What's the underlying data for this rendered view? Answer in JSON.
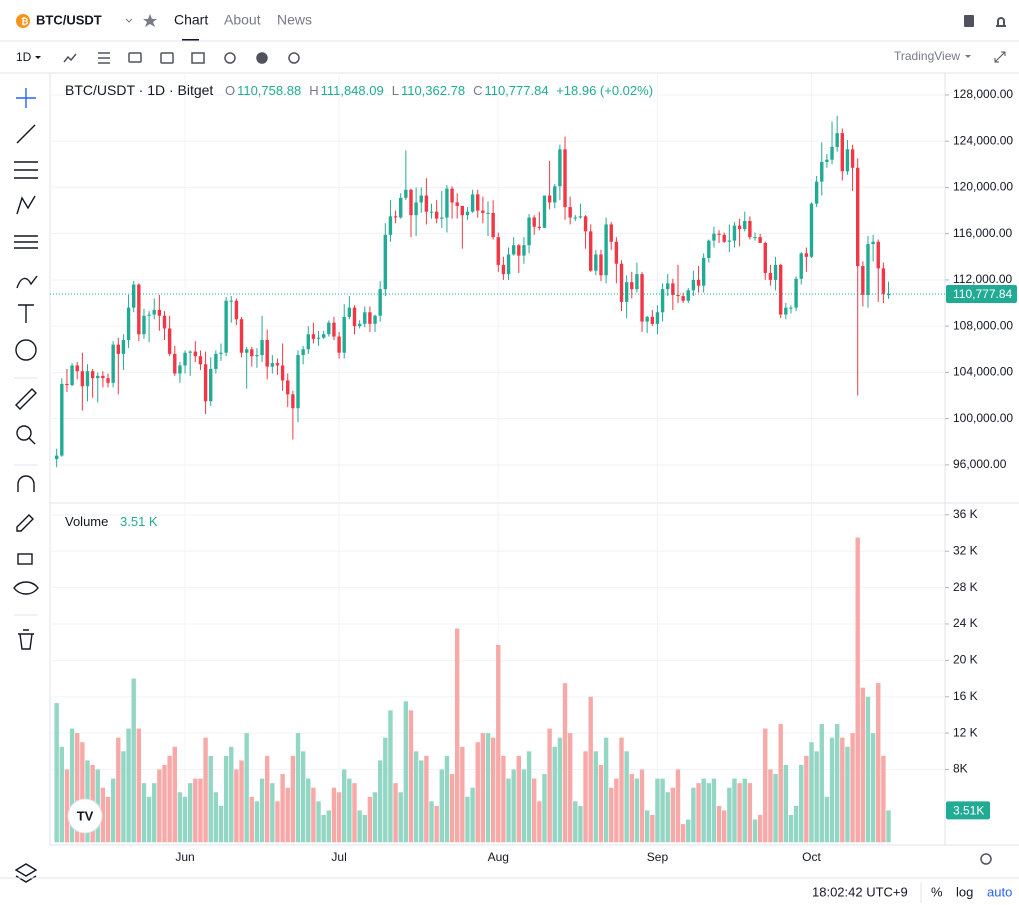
{
  "ui": {
    "symbol": "BTC/USDT",
    "tabs": [
      "Chart",
      "About",
      "News"
    ],
    "interval": "1D",
    "brand": "TradingView",
    "clock": "18:02:42 UTC+9",
    "percent": "%",
    "log": "log",
    "auto": "auto"
  },
  "legend": {
    "symbol": "BTC/USDT · 1D · Bitget",
    "fields": [
      {
        "label": "O",
        "value": "110,758.88"
      },
      {
        "label": "H",
        "value": "111,848.09"
      },
      {
        "label": "L",
        "value": "110,362.78"
      },
      {
        "label": "C",
        "value": "110,777.84"
      }
    ],
    "change": "+18.96 (+0.02%)",
    "volume_name": "Volume",
    "volume_value": "3.51 K"
  },
  "chart_data": {
    "type": "candlestick",
    "up_color": "#22ab94",
    "down_color": "#f23645",
    "volume_up_color": "#93d6c4",
    "volume_down_color": "#f7a9a7",
    "xlim": [
      -1.3,
      173
    ],
    "xticks": [
      {
        "value": 25,
        "label": "Jun"
      },
      {
        "value": 55,
        "label": "Jul"
      },
      {
        "value": 86,
        "label": "Aug"
      },
      {
        "value": 117,
        "label": "Sep"
      },
      {
        "value": 147,
        "label": "Oct"
      }
    ],
    "ylim": [
      92700,
      129900
    ],
    "yticks": [
      {
        "value": 96000,
        "label": "96,000.00"
      },
      {
        "value": 100000,
        "label": "100,000.00"
      },
      {
        "value": 104000,
        "label": "104,000.00"
      },
      {
        "value": 108000,
        "label": "108,000.00"
      },
      {
        "value": 112000,
        "label": "112,000.00"
      },
      {
        "value": 116000,
        "label": "116,000.00"
      },
      {
        "value": 120000,
        "label": "120,000.00"
      },
      {
        "value": 124000,
        "label": "124,000.00"
      },
      {
        "value": 128000,
        "label": "128,000.00"
      }
    ],
    "volume_ylim": [
      -0.3,
      37.3
    ],
    "volume_yticks": [
      {
        "value": 8,
        "label": "8K"
      },
      {
        "value": 12,
        "label": "12 K"
      },
      {
        "value": 16,
        "label": "16 K"
      },
      {
        "value": 20,
        "label": "20 K"
      },
      {
        "value": 24,
        "label": "24 K"
      },
      {
        "value": 28,
        "label": "28 K"
      },
      {
        "value": 32,
        "label": "32 K"
      },
      {
        "value": 36,
        "label": "36 K"
      }
    ],
    "grid": true,
    "last_price": 110777.84,
    "last_price_label": "110,777.84",
    "last_volume_label": "3.51K",
    "candles": [
      [
        96500,
        97400,
        95800,
        96800
      ],
      [
        96800,
        103500,
        96700,
        103000
      ],
      [
        103000,
        104300,
        102300,
        102900
      ],
      [
        102900,
        104800,
        102800,
        104600
      ],
      [
        104600,
        104900,
        103400,
        104100
      ],
      [
        104100,
        105700,
        100700,
        102800
      ],
      [
        102800,
        104700,
        101500,
        104100
      ],
      [
        104100,
        104300,
        101800,
        103500
      ],
      [
        103500,
        104000,
        101400,
        103700
      ],
      [
        103700,
        104100,
        102700,
        103500
      ],
      [
        103500,
        103900,
        102700,
        103100
      ],
      [
        103100,
        106700,
        102700,
        106400
      ],
      [
        106400,
        107000,
        102100,
        105600
      ],
      [
        105600,
        107300,
        104200,
        106800
      ],
      [
        106800,
        110700,
        106100,
        109600
      ],
      [
        109600,
        111900,
        109200,
        111600
      ],
      [
        111600,
        111700,
        106700,
        107300
      ],
      [
        107300,
        109500,
        106900,
        108900
      ],
      [
        108900,
        109300,
        106600,
        109000
      ],
      [
        109000,
        110400,
        108600,
        109400
      ],
      [
        109400,
        110700,
        107600,
        108900
      ],
      [
        108900,
        109300,
        106800,
        107800
      ],
      [
        107800,
        108900,
        105400,
        105600
      ],
      [
        105600,
        106300,
        103700,
        103900
      ],
      [
        103900,
        104900,
        103100,
        104600
      ],
      [
        104600,
        105900,
        103900,
        105700
      ],
      [
        105700,
        105900,
        103700,
        105800
      ],
      [
        105800,
        106700,
        104900,
        105400
      ],
      [
        105400,
        105900,
        104200,
        104700
      ],
      [
        104700,
        105800,
        100400,
        101500
      ],
      [
        101500,
        105300,
        101100,
        104300
      ],
      [
        104300,
        105900,
        103900,
        105600
      ],
      [
        105600,
        106500,
        105000,
        105700
      ],
      [
        105700,
        110500,
        105400,
        110200
      ],
      [
        110200,
        110600,
        108300,
        110200
      ],
      [
        110200,
        110400,
        108100,
        108600
      ],
      [
        108600,
        108800,
        105300,
        105700
      ],
      [
        105700,
        106200,
        102600,
        106000
      ],
      [
        106000,
        106200,
        104500,
        105400
      ],
      [
        105400,
        106100,
        104400,
        105500
      ],
      [
        105500,
        108900,
        104900,
        106800
      ],
      [
        106800,
        107700,
        103400,
        104500
      ],
      [
        104500,
        105500,
        103900,
        104800
      ],
      [
        104800,
        105200,
        103800,
        104600
      ],
      [
        104600,
        106500,
        102400,
        103300
      ],
      [
        103300,
        103900,
        101000,
        102100
      ],
      [
        102100,
        102400,
        98200,
        100900
      ],
      [
        100900,
        105900,
        99700,
        105500
      ],
      [
        105500,
        106300,
        104700,
        106000
      ],
      [
        106000,
        108000,
        105600,
        107300
      ],
      [
        107300,
        108300,
        106500,
        106900
      ],
      [
        106900,
        107600,
        106300,
        107000
      ],
      [
        107000,
        107600,
        106900,
        107300
      ],
      [
        107300,
        108500,
        107100,
        108300
      ],
      [
        108300,
        108800,
        106800,
        107100
      ],
      [
        107100,
        107500,
        105200,
        105700
      ],
      [
        105700,
        109900,
        105200,
        108800
      ],
      [
        108800,
        110600,
        108600,
        109600
      ],
      [
        109600,
        109800,
        107300,
        108000
      ],
      [
        108000,
        108500,
        107800,
        108200
      ],
      [
        108200,
        109700,
        107900,
        109200
      ],
      [
        109200,
        109700,
        107500,
        108200
      ],
      [
        108200,
        109000,
        107500,
        108900
      ],
      [
        108900,
        111900,
        108400,
        111200
      ],
      [
        111200,
        116900,
        110600,
        115900
      ],
      [
        115900,
        118900,
        115300,
        117500
      ],
      [
        117500,
        118000,
        116900,
        117400
      ],
      [
        117400,
        119500,
        117300,
        119100
      ],
      [
        119100,
        123200,
        118900,
        119800
      ],
      [
        119800,
        119900,
        115700,
        117600
      ],
      [
        117600,
        120000,
        115800,
        118700
      ],
      [
        118700,
        120000,
        117800,
        119300
      ],
      [
        119300,
        120800,
        116800,
        117900
      ],
      [
        117900,
        118600,
        117300,
        117900
      ],
      [
        117900,
        118900,
        116900,
        117300
      ],
      [
        117300,
        119700,
        116500,
        117400
      ],
      [
        117400,
        120200,
        116100,
        119900
      ],
      [
        119900,
        120100,
        117300,
        118700
      ],
      [
        118700,
        119500,
        117300,
        118400
      ],
      [
        118400,
        118400,
        114700,
        117600
      ],
      [
        117600,
        118300,
        117200,
        117900
      ],
      [
        117900,
        119800,
        117800,
        119400
      ],
      [
        119400,
        119800,
        117400,
        118000
      ],
      [
        118000,
        119200,
        116900,
        117800
      ],
      [
        117800,
        118800,
        115800,
        117800
      ],
      [
        117800,
        118900,
        115500,
        115700
      ],
      [
        115700,
        116100,
        112700,
        113300
      ],
      [
        113300,
        114000,
        112000,
        112500
      ],
      [
        112500,
        114800,
        112000,
        114200
      ],
      [
        114200,
        115700,
        114100,
        115000
      ],
      [
        115000,
        115100,
        112600,
        114100
      ],
      [
        114100,
        115700,
        113400,
        115000
      ],
      [
        115000,
        117700,
        114300,
        117400
      ],
      [
        117400,
        117600,
        115900,
        116600
      ],
      [
        116600,
        117900,
        116300,
        116500
      ],
      [
        116500,
        119300,
        116500,
        119300
      ],
      [
        119300,
        122300,
        118100,
        118700
      ],
      [
        118700,
        120300,
        118200,
        120100
      ],
      [
        120100,
        123700,
        118900,
        123300
      ],
      [
        123300,
        124400,
        117200,
        118300
      ],
      [
        118300,
        119200,
        116800,
        117400
      ],
      [
        117400,
        117600,
        117100,
        117400
      ],
      [
        117400,
        118600,
        117300,
        117500
      ],
      [
        117500,
        117600,
        114700,
        116200
      ],
      [
        116200,
        116800,
        112700,
        112800
      ],
      [
        112800,
        114600,
        112400,
        114200
      ],
      [
        114200,
        114600,
        111900,
        112400
      ],
      [
        112400,
        117400,
        111700,
        116800
      ],
      [
        116800,
        117000,
        114600,
        115300
      ],
      [
        115300,
        115700,
        111700,
        113400
      ],
      [
        113400,
        113700,
        109300,
        110100
      ],
      [
        110100,
        112400,
        108700,
        111800
      ],
      [
        111800,
        112700,
        110400,
        111200
      ],
      [
        111200,
        113500,
        110900,
        112500
      ],
      [
        112500,
        112700,
        107500,
        108400
      ],
      [
        108400,
        108900,
        107400,
        108800
      ],
      [
        108800,
        109400,
        108000,
        108200
      ],
      [
        108200,
        109800,
        107300,
        109200
      ],
      [
        109200,
        111700,
        108400,
        111200
      ],
      [
        111200,
        112500,
        110600,
        111700
      ],
      [
        111700,
        112100,
        109400,
        110700
      ],
      [
        110700,
        113300,
        110000,
        110600
      ],
      [
        110600,
        110900,
        110000,
        110200
      ],
      [
        110200,
        111300,
        110000,
        111100
      ],
      [
        111100,
        112800,
        110600,
        112000
      ],
      [
        112000,
        113200,
        110900,
        111500
      ],
      [
        111500,
        114300,
        110900,
        113900
      ],
      [
        113900,
        115500,
        113500,
        115400
      ],
      [
        115400,
        116600,
        114800,
        116000
      ],
      [
        116000,
        116300,
        115200,
        115900
      ],
      [
        115900,
        116100,
        115200,
        115300
      ],
      [
        115300,
        116800,
        114400,
        115400
      ],
      [
        115400,
        117000,
        114800,
        116700
      ],
      [
        116700,
        117300,
        114900,
        116400
      ],
      [
        116400,
        117900,
        116200,
        117100
      ],
      [
        117100,
        117500,
        115500,
        115700
      ],
      [
        115700,
        116100,
        115400,
        115700
      ],
      [
        115700,
        116000,
        115200,
        115200
      ],
      [
        115200,
        115300,
        112000,
        112600
      ],
      [
        112600,
        113300,
        111500,
        112000
      ],
      [
        112000,
        114000,
        111100,
        113300
      ],
      [
        113300,
        113400,
        108700,
        109000
      ],
      [
        109000,
        110000,
        108600,
        109600
      ],
      [
        109600,
        109800,
        109100,
        109600
      ],
      [
        109600,
        112300,
        109300,
        112100
      ],
      [
        112100,
        114400,
        111600,
        114300
      ],
      [
        114300,
        114800,
        112700,
        114000
      ],
      [
        114000,
        118700,
        113900,
        118600
      ],
      [
        118600,
        121000,
        118300,
        120500
      ],
      [
        120500,
        123900,
        119300,
        122200
      ],
      [
        122200,
        122900,
        121700,
        122400
      ],
      [
        122400,
        125700,
        122000,
        123500
      ],
      [
        123500,
        126200,
        123100,
        124700
      ],
      [
        124700,
        125100,
        120600,
        121400
      ],
      [
        121400,
        124100,
        121100,
        123300
      ],
      [
        123300,
        123700,
        119700,
        121700
      ],
      [
        121700,
        122500,
        102000,
        113200
      ],
      [
        113200,
        113600,
        109700,
        110700
      ],
      [
        110700,
        115800,
        109600,
        115100
      ],
      [
        115100,
        115900,
        113600,
        115300
      ],
      [
        115300,
        115500,
        110100,
        113000
      ],
      [
        113000,
        113500,
        110000,
        110800
      ],
      [
        110758.88,
        111848.09,
        110362.78,
        110777.84
      ]
    ],
    "volume": [
      15.3,
      10.5,
      8,
      12.5,
      12,
      11,
      9,
      8.5,
      8,
      6,
      5,
      7,
      11.5,
      10,
      12.5,
      18,
      12.5,
      6.5,
      5,
      6.5,
      8,
      8.5,
      9.5,
      10.5,
      5.5,
      5,
      6.5,
      7,
      7,
      11.5,
      9.5,
      5.5,
      4,
      9.5,
      10.5,
      8,
      9,
      12,
      5,
      4.5,
      7,
      9.5,
      6.5,
      4.5,
      7.5,
      6,
      9.5,
      12,
      10,
      7,
      6,
      4.5,
      3,
      3.5,
      6,
      5.5,
      8,
      7,
      6.5,
      3.5,
      3,
      5,
      5.5,
      9,
      11.5,
      14.5,
      6.5,
      5.5,
      15.5,
      14.5,
      10,
      9,
      9.5,
      4.5,
      4,
      8,
      9.5,
      7.5,
      23.5,
      10.5,
      5,
      6,
      11,
      12,
      12,
      11.5,
      21.7,
      9.5,
      7,
      8,
      9.5,
      8,
      10,
      7,
      4.5,
      7.5,
      12.5,
      10.5,
      11.5,
      17.5,
      12,
      4.5,
      4,
      10,
      16,
      10,
      8.5,
      11.5,
      6,
      7,
      11.5,
      10,
      7.5,
      7,
      8,
      3.5,
      3,
      7,
      7,
      5.5,
      6,
      8,
      2,
      2.5,
      6,
      6.5,
      7,
      6.5,
      7,
      4,
      3.5,
      6,
      7,
      6.5,
      7,
      6.5,
      2.5,
      3,
      12.5,
      8,
      7.5,
      13,
      8.5,
      3,
      4,
      8.5,
      9.5,
      11,
      10,
      13,
      5,
      11.5,
      13,
      11.5,
      10.5,
      12,
      33.5,
      17,
      16,
      12,
      17.5,
      9.5,
      3.51
    ]
  }
}
